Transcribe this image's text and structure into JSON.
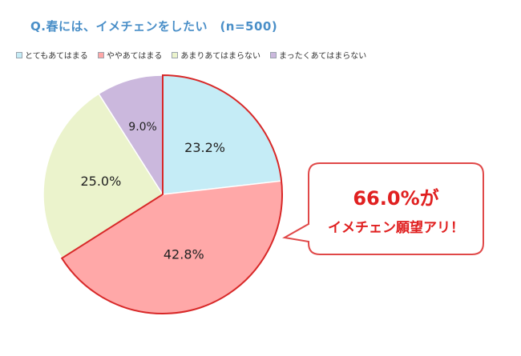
{
  "chart_data": {
    "type": "pie",
    "title": "Q.春には、イメチェンをしたい　(n=500)",
    "categories": [
      "とてもあてはまる",
      "ややあてはまる",
      "あまりあてはまらない",
      "まったくあてはまらない"
    ],
    "values": [
      23.2,
      42.8,
      25.0,
      9.0
    ],
    "labels": [
      "23.2%",
      "42.8%",
      "25.0%",
      "9.0%"
    ],
    "colors": [
      "#c5ecf6",
      "#ffa8a8",
      "#ebf3cc",
      "#cbb8dd"
    ],
    "legend_position": "top-left",
    "highlight_slice": 1,
    "callout": {
      "line1": "66.0%が",
      "line2": "イメチェン願望アリ！",
      "color": "#e02020",
      "border_color": "#e04848"
    }
  }
}
